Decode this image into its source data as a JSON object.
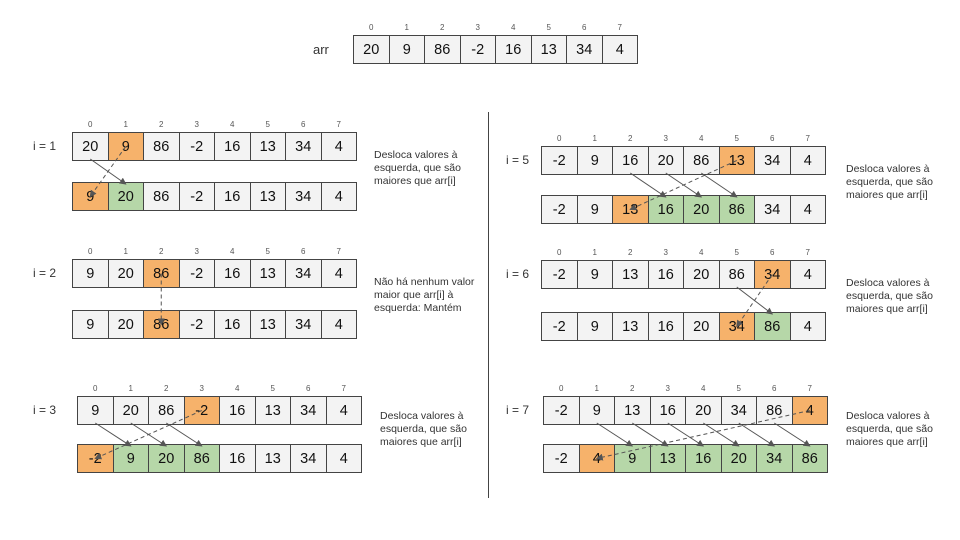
{
  "top": {
    "label": "arr",
    "values": [
      "20",
      "9",
      "86",
      "-2",
      "16",
      "13",
      "34",
      "4"
    ],
    "indices": [
      "0",
      "1",
      "2",
      "3",
      "4",
      "5",
      "6",
      "7"
    ]
  },
  "steps": [
    {
      "label": "i = 1",
      "before": [
        "20",
        "9",
        "86",
        "-2",
        "16",
        "13",
        "34",
        "4"
      ],
      "after": [
        "9",
        "20",
        "86",
        "-2",
        "16",
        "13",
        "34",
        "4"
      ],
      "note": "Desloca valores à esquerda, que são maiores que arr[i]"
    },
    {
      "label": "i = 2",
      "before": [
        "9",
        "20",
        "86",
        "-2",
        "16",
        "13",
        "34",
        "4"
      ],
      "after": [
        "9",
        "20",
        "86",
        "-2",
        "16",
        "13",
        "34",
        "4"
      ],
      "note": "Não há nenhum valor maior que arr[i] à esquerda: Mantém"
    },
    {
      "label": "i = 3",
      "before": [
        "9",
        "20",
        "86",
        "-2",
        "16",
        "13",
        "34",
        "4"
      ],
      "after": [
        "-2",
        "9",
        "20",
        "86",
        "16",
        "13",
        "34",
        "4"
      ],
      "note": "Desloca valores à esquerda, que são maiores que arr[i]"
    },
    {
      "label": "i = 5",
      "before": [
        "-2",
        "9",
        "16",
        "20",
        "86",
        "13",
        "34",
        "4"
      ],
      "after": [
        "-2",
        "9",
        "13",
        "16",
        "20",
        "86",
        "34",
        "4"
      ],
      "note": "Desloca valores à esquerda, que são maiores que arr[i]"
    },
    {
      "label": "i = 6",
      "before": [
        "-2",
        "9",
        "13",
        "16",
        "20",
        "86",
        "34",
        "4"
      ],
      "after": [
        "-2",
        "9",
        "13",
        "16",
        "20",
        "34",
        "86",
        "4"
      ],
      "note": "Desloca valores à esquerda, que são maiores que arr[i]"
    },
    {
      "label": "i = 7",
      "before": [
        "-2",
        "9",
        "13",
        "16",
        "20",
        "34",
        "86",
        "4"
      ],
      "after": [
        "-2",
        "4",
        "9",
        "13",
        "16",
        "20",
        "34",
        "86"
      ],
      "note": "Desloca valores à esquerda, que são maiores que arr[i]"
    }
  ],
  "colors": {
    "cell": "#f3f3f3",
    "highlight": "#f6b26b",
    "shifted": "#b6d7a8",
    "border": "#444444",
    "arrow": "#555555"
  }
}
